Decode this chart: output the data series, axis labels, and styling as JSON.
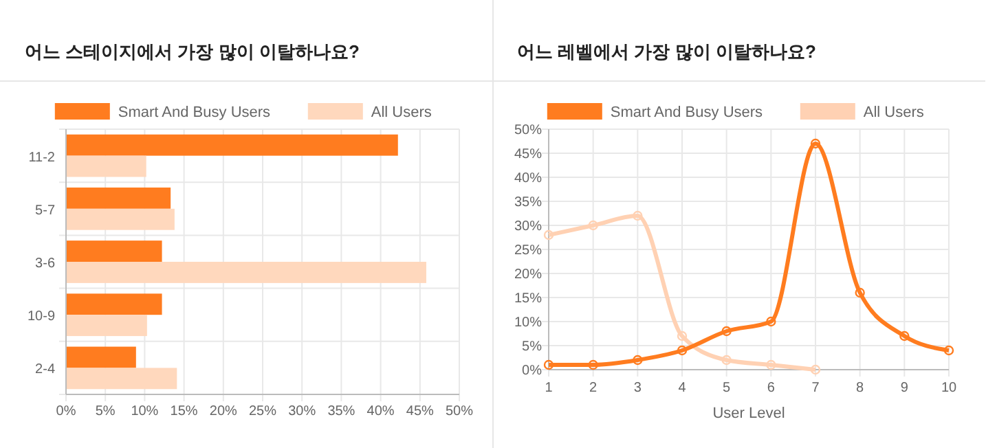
{
  "chart_data": [
    {
      "type": "bar",
      "title": "어느 스테이지에서 가장 많이 이탈하나요?",
      "orientation": "horizontal",
      "categories": [
        "11-2",
        "5-7",
        "3-6",
        "10-9",
        "2-4"
      ],
      "series": [
        {
          "name": "Smart And Busy Users",
          "color": "#ff7c1f",
          "values": [
            42.2,
            13.3,
            12.2,
            12.2,
            8.9
          ]
        },
        {
          "name": "All Users",
          "color": "#ffd8bd",
          "values": [
            10.2,
            13.8,
            45.8,
            10.3,
            14.1
          ]
        }
      ],
      "xlim": [
        0,
        50
      ],
      "xticks": [
        {
          "value": 0,
          "label": "0%"
        },
        {
          "value": 5,
          "label": "5%"
        },
        {
          "value": 10,
          "label": "10%"
        },
        {
          "value": 15,
          "label": "15%"
        },
        {
          "value": 20,
          "label": "20%"
        },
        {
          "value": 25,
          "label": "25%"
        },
        {
          "value": 30,
          "label": "30%"
        },
        {
          "value": 35,
          "label": "35%"
        },
        {
          "value": 40,
          "label": "40%"
        },
        {
          "value": 45,
          "label": "45%"
        },
        {
          "value": 50,
          "label": "50%"
        }
      ],
      "grid": true,
      "legend": "top"
    },
    {
      "type": "line",
      "title": "어느 레벨에서 가장 많이 이탈하나요?",
      "xlabel": "User Level",
      "x": [
        1,
        2,
        3,
        4,
        5,
        6,
        7,
        8,
        9,
        10
      ],
      "series": [
        {
          "name": "Smart And Busy Users",
          "color": "#ff7c1f",
          "values": [
            1,
            1,
            2,
            4,
            8,
            10,
            47,
            16,
            7,
            4
          ]
        },
        {
          "name": "All Users",
          "color": "#ffd1b3",
          "values": [
            28,
            30,
            32,
            7,
            2,
            1,
            0,
            null,
            null,
            null
          ]
        }
      ],
      "xlim": [
        1,
        10
      ],
      "xticks": [
        1,
        2,
        3,
        4,
        5,
        6,
        7,
        8,
        9,
        10
      ],
      "ylim": [
        0,
        50
      ],
      "yticks": [
        {
          "value": 0,
          "label": "0%"
        },
        {
          "value": 5,
          "label": "5%"
        },
        {
          "value": 10,
          "label": "10%"
        },
        {
          "value": 15,
          "label": "15%"
        },
        {
          "value": 20,
          "label": "20%"
        },
        {
          "value": 25,
          "label": "25%"
        },
        {
          "value": 30,
          "label": "30%"
        },
        {
          "value": 35,
          "label": "35%"
        },
        {
          "value": 40,
          "label": "40%"
        },
        {
          "value": 45,
          "label": "45%"
        },
        {
          "value": 50,
          "label": "50%"
        }
      ],
      "grid": true,
      "legend": "top",
      "marker": "circle",
      "line_style": "solid"
    }
  ]
}
